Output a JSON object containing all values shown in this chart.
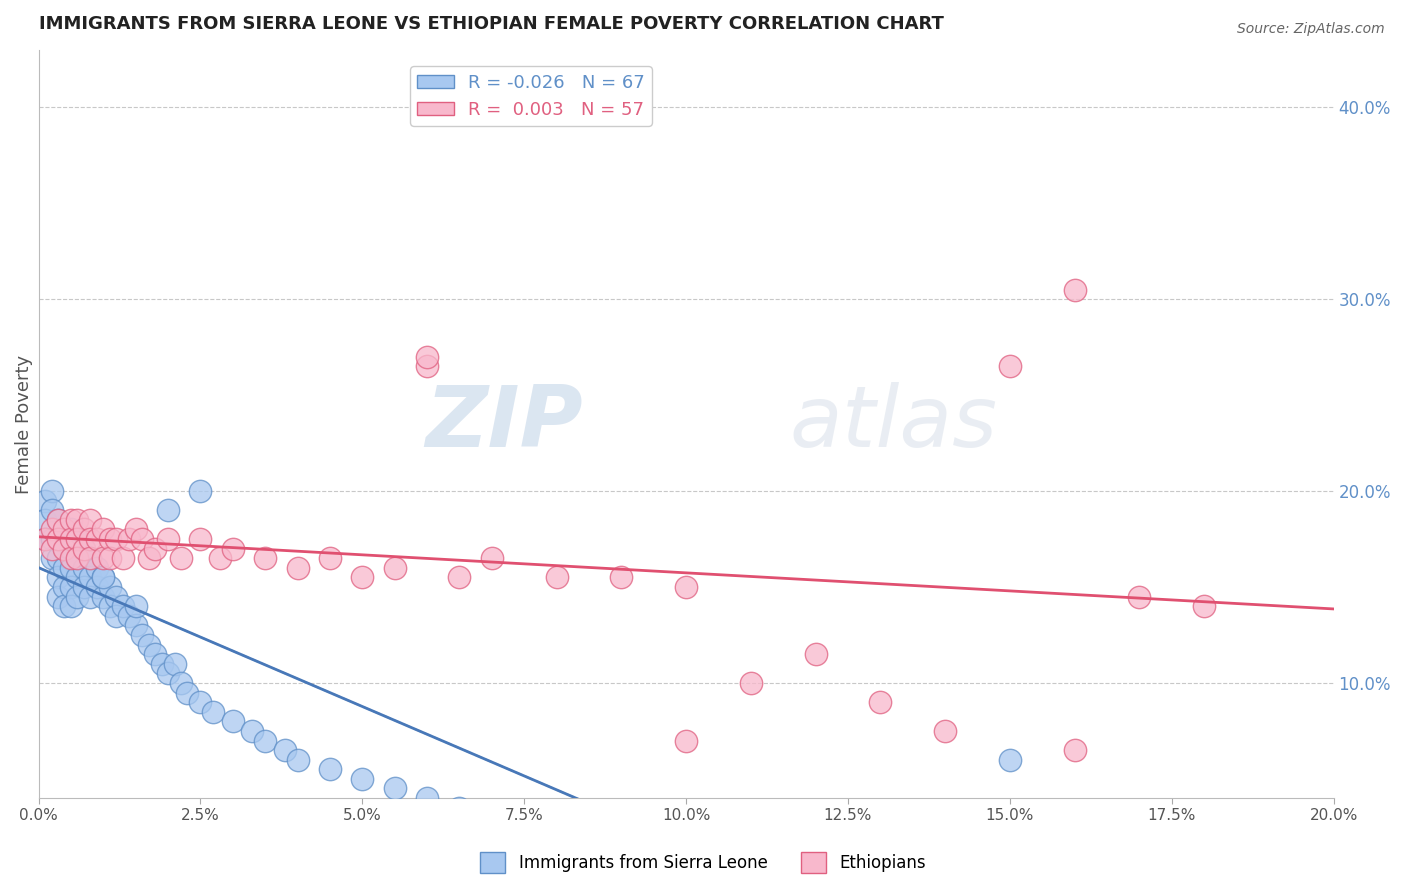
{
  "title": "IMMIGRANTS FROM SIERRA LEONE VS ETHIOPIAN FEMALE POVERTY CORRELATION CHART",
  "source": "Source: ZipAtlas.com",
  "ylabel": "Female Poverty",
  "ylabel_right_ticks": [
    0.1,
    0.2,
    0.3,
    0.4
  ],
  "ylabel_right_labels": [
    "10.0%",
    "20.0%",
    "30.0%",
    "40.0%"
  ],
  "xlim": [
    0.0,
    0.2
  ],
  "ylim": [
    0.04,
    0.43
  ],
  "blue_R": -0.026,
  "blue_N": 67,
  "pink_R": 0.003,
  "pink_N": 57,
  "blue_color": "#a8c8f0",
  "pink_color": "#f8b8cc",
  "blue_edge_color": "#6090c8",
  "pink_edge_color": "#e06080",
  "blue_trend_color": "#4878b8",
  "pink_trend_color": "#e05070",
  "legend_label_blue": "Immigrants from Sierra Leone",
  "legend_label_pink": "Ethiopians",
  "watermark_zip": "ZIP",
  "watermark_atlas": "atlas",
  "background_color": "#ffffff",
  "grid_color": "#c8c8c8",
  "blue_x": [
    0.001,
    0.001,
    0.001,
    0.002,
    0.002,
    0.002,
    0.002,
    0.003,
    0.003,
    0.003,
    0.003,
    0.003,
    0.004,
    0.004,
    0.004,
    0.004,
    0.005,
    0.005,
    0.005,
    0.005,
    0.005,
    0.006,
    0.006,
    0.006,
    0.006,
    0.007,
    0.007,
    0.007,
    0.008,
    0.008,
    0.008,
    0.009,
    0.009,
    0.01,
    0.01,
    0.011,
    0.011,
    0.012,
    0.012,
    0.013,
    0.014,
    0.015,
    0.015,
    0.016,
    0.017,
    0.018,
    0.019,
    0.02,
    0.021,
    0.022,
    0.023,
    0.025,
    0.027,
    0.03,
    0.033,
    0.035,
    0.038,
    0.04,
    0.045,
    0.05,
    0.055,
    0.06,
    0.065,
    0.02,
    0.025,
    0.15,
    0.01
  ],
  "blue_y": [
    0.195,
    0.185,
    0.175,
    0.2,
    0.19,
    0.175,
    0.165,
    0.185,
    0.175,
    0.165,
    0.155,
    0.145,
    0.17,
    0.16,
    0.15,
    0.14,
    0.18,
    0.17,
    0.16,
    0.15,
    0.14,
    0.175,
    0.165,
    0.155,
    0.145,
    0.17,
    0.16,
    0.15,
    0.165,
    0.155,
    0.145,
    0.16,
    0.15,
    0.155,
    0.145,
    0.15,
    0.14,
    0.145,
    0.135,
    0.14,
    0.135,
    0.13,
    0.14,
    0.125,
    0.12,
    0.115,
    0.11,
    0.105,
    0.11,
    0.1,
    0.095,
    0.09,
    0.085,
    0.08,
    0.075,
    0.07,
    0.065,
    0.06,
    0.055,
    0.05,
    0.045,
    0.04,
    0.035,
    0.19,
    0.2,
    0.06,
    0.155
  ],
  "pink_x": [
    0.001,
    0.002,
    0.002,
    0.003,
    0.003,
    0.004,
    0.004,
    0.005,
    0.005,
    0.005,
    0.006,
    0.006,
    0.006,
    0.007,
    0.007,
    0.008,
    0.008,
    0.008,
    0.009,
    0.01,
    0.01,
    0.011,
    0.011,
    0.012,
    0.013,
    0.014,
    0.015,
    0.016,
    0.017,
    0.018,
    0.02,
    0.022,
    0.025,
    0.028,
    0.03,
    0.035,
    0.04,
    0.045,
    0.05,
    0.055,
    0.06,
    0.065,
    0.07,
    0.08,
    0.09,
    0.1,
    0.11,
    0.12,
    0.13,
    0.14,
    0.15,
    0.16,
    0.17,
    0.18,
    0.06,
    0.1,
    0.16
  ],
  "pink_y": [
    0.175,
    0.18,
    0.17,
    0.185,
    0.175,
    0.18,
    0.17,
    0.185,
    0.175,
    0.165,
    0.185,
    0.175,
    0.165,
    0.18,
    0.17,
    0.185,
    0.175,
    0.165,
    0.175,
    0.18,
    0.165,
    0.175,
    0.165,
    0.175,
    0.165,
    0.175,
    0.18,
    0.175,
    0.165,
    0.17,
    0.175,
    0.165,
    0.175,
    0.165,
    0.17,
    0.165,
    0.16,
    0.165,
    0.155,
    0.16,
    0.265,
    0.155,
    0.165,
    0.155,
    0.155,
    0.15,
    0.1,
    0.115,
    0.09,
    0.075,
    0.265,
    0.305,
    0.145,
    0.14,
    0.27,
    0.07,
    0.065
  ]
}
